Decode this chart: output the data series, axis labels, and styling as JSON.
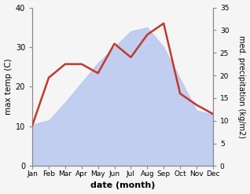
{
  "months": [
    "Jan",
    "Feb",
    "Mar",
    "Apr",
    "May",
    "Jun",
    "Jul",
    "Aug",
    "Sep",
    "Oct",
    "Nov",
    "Dec"
  ],
  "max_temp": [
    10.5,
    11.5,
    16.0,
    21.0,
    26.0,
    30.0,
    34.0,
    35.0,
    30.0,
    22.0,
    14.0,
    13.0
  ],
  "precipitation": [
    9.0,
    19.5,
    22.5,
    22.5,
    20.5,
    27.0,
    24.0,
    29.0,
    31.5,
    16.0,
    13.5,
    11.5
  ],
  "precip_color": "#c0392b",
  "temp_ylim": [
    0,
    40
  ],
  "precip_ylim": [
    0,
    35
  ],
  "temp_yticks": [
    0,
    10,
    20,
    30,
    40
  ],
  "precip_yticks": [
    0,
    5,
    10,
    15,
    20,
    25,
    30,
    35
  ],
  "ylabel_left": "max temp (C)",
  "ylabel_right": "med. precipitation (kg/m2)",
  "xlabel": "date (month)",
  "bg_color": "#f5f5f5",
  "fill_color": "#b8c8ee",
  "fill_alpha": 0.85,
  "linewidth": 1.8,
  "figwidth": 3.18,
  "figheight": 2.47,
  "dpi": 100
}
